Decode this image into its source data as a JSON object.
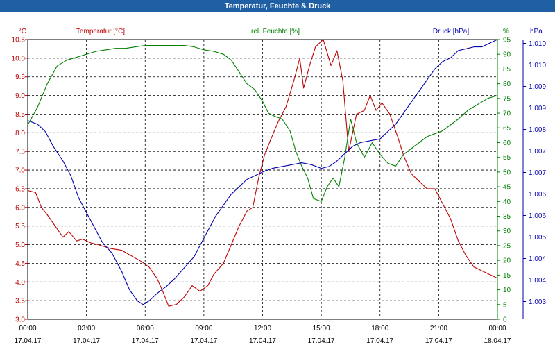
{
  "title": "Temperatur, Feuchte & Druck",
  "chart_data": {
    "type": "line",
    "title": "Temperatur, Feuchte & Druck",
    "x": {
      "labels": [
        [
          "00:00",
          "17.04.17"
        ],
        [
          "03:00",
          "17.04.17"
        ],
        [
          "06:00",
          "17.04.17"
        ],
        [
          "09:00",
          "17.04.17"
        ],
        [
          "12:00",
          "17.04.17"
        ],
        [
          "15:00",
          "17.04.17"
        ],
        [
          "18:00",
          "17.04.17"
        ],
        [
          "21:00",
          "17.04.17"
        ],
        [
          "00:00",
          "18.04.17"
        ]
      ],
      "ticks_hours": [
        0,
        3,
        6,
        9,
        12,
        15,
        18,
        21,
        24
      ],
      "range_hours": [
        0,
        24
      ]
    },
    "axes": {
      "temperature": {
        "label": "Temperatur [°C]",
        "unit": "°C",
        "min": 3.0,
        "max": 10.5,
        "ticks": [
          "3.0",
          "3.5",
          "4.0",
          "4.5",
          "5.0",
          "5.5",
          "6.0",
          "6.5",
          "7.0",
          "7.5",
          "8.0",
          "8.5",
          "9.0",
          "9.5",
          "10.0",
          "10.5"
        ],
        "color": "#c00000"
      },
      "humidity": {
        "label": "rel. Feuchte [%]",
        "unit": "%",
        "min": 0,
        "max": 95,
        "ticks": [
          "0",
          "5",
          "10",
          "15",
          "20",
          "25",
          "30",
          "35",
          "40",
          "45",
          "50",
          "55",
          "60",
          "65",
          "70",
          "75",
          "80",
          "85",
          "90",
          "95"
        ],
        "color": "#008000"
      },
      "pressure": {
        "label": "Druck [hPa]",
        "unit": "hPa",
        "min": 1002.7,
        "max": 1010.3,
        "ticks": [
          "1.003",
          "1.004",
          "1.004",
          "1.005",
          "1.006",
          "1.006",
          "1.007",
          "1.007",
          "1.008",
          "1.009",
          "1.009",
          "1.010",
          "1.010"
        ],
        "color": "#0000b0"
      }
    },
    "grid": true,
    "series": [
      {
        "name": "Temperatur [°C]",
        "color": "#c00000",
        "axis": "temperature",
        "points": [
          [
            0,
            6.45
          ],
          [
            0.4,
            6.4
          ],
          [
            0.7,
            6.0
          ],
          [
            1.0,
            5.8
          ],
          [
            1.4,
            5.5
          ],
          [
            1.8,
            5.2
          ],
          [
            2.1,
            5.35
          ],
          [
            2.5,
            5.1
          ],
          [
            2.8,
            5.15
          ],
          [
            3.2,
            5.05
          ],
          [
            3.6,
            5.0
          ],
          [
            4.2,
            4.9
          ],
          [
            4.8,
            4.85
          ],
          [
            5.3,
            4.7
          ],
          [
            5.8,
            4.55
          ],
          [
            6.2,
            4.4
          ],
          [
            6.6,
            4.1
          ],
          [
            6.9,
            3.75
          ],
          [
            7.2,
            3.35
          ],
          [
            7.6,
            3.4
          ],
          [
            8.0,
            3.6
          ],
          [
            8.4,
            3.9
          ],
          [
            8.8,
            3.75
          ],
          [
            9.2,
            3.9
          ],
          [
            9.5,
            4.2
          ],
          [
            10.0,
            4.5
          ],
          [
            10.4,
            5.0
          ],
          [
            10.8,
            5.5
          ],
          [
            11.2,
            5.9
          ],
          [
            11.5,
            6.0
          ],
          [
            11.8,
            6.8
          ],
          [
            12.1,
            7.4
          ],
          [
            12.4,
            7.8
          ],
          [
            12.8,
            8.3
          ],
          [
            13.2,
            8.7
          ],
          [
            13.6,
            9.4
          ],
          [
            13.9,
            10.0
          ],
          [
            14.1,
            9.2
          ],
          [
            14.4,
            9.8
          ],
          [
            14.7,
            10.3
          ],
          [
            15.1,
            10.5
          ],
          [
            15.5,
            9.8
          ],
          [
            15.8,
            10.2
          ],
          [
            16.1,
            9.4
          ],
          [
            16.4,
            7.5
          ],
          [
            16.8,
            8.5
          ],
          [
            17.2,
            8.6
          ],
          [
            17.5,
            9.0
          ],
          [
            17.8,
            8.6
          ],
          [
            18.1,
            8.8
          ],
          [
            18.5,
            8.5
          ],
          [
            18.9,
            7.9
          ],
          [
            19.2,
            7.4
          ],
          [
            19.6,
            6.9
          ],
          [
            20.0,
            6.7
          ],
          [
            20.4,
            6.5
          ],
          [
            20.8,
            6.5
          ],
          [
            21.2,
            6.1
          ],
          [
            21.6,
            5.7
          ],
          [
            22.0,
            5.1
          ],
          [
            22.4,
            4.7
          ],
          [
            22.8,
            4.4
          ],
          [
            23.2,
            4.3
          ],
          [
            23.6,
            4.2
          ],
          [
            24.0,
            4.1
          ]
        ]
      },
      {
        "name": "rel. Feuchte [%]",
        "color": "#008000",
        "axis": "humidity",
        "points": [
          [
            0,
            66
          ],
          [
            0.5,
            72
          ],
          [
            1.0,
            80
          ],
          [
            1.5,
            86
          ],
          [
            2.0,
            88
          ],
          [
            2.5,
            89
          ],
          [
            3.0,
            90
          ],
          [
            3.5,
            91
          ],
          [
            4.0,
            91.5
          ],
          [
            4.5,
            92
          ],
          [
            5.0,
            92
          ],
          [
            5.5,
            92.5
          ],
          [
            6.0,
            93
          ],
          [
            6.5,
            93
          ],
          [
            7.0,
            93
          ],
          [
            7.5,
            93
          ],
          [
            8.0,
            93
          ],
          [
            8.5,
            92.5
          ],
          [
            9.0,
            91.5
          ],
          [
            9.5,
            91
          ],
          [
            10.0,
            90
          ],
          [
            10.4,
            88
          ],
          [
            10.8,
            84
          ],
          [
            11.2,
            80
          ],
          [
            11.6,
            78
          ],
          [
            12.0,
            74
          ],
          [
            12.3,
            70
          ],
          [
            12.6,
            69
          ],
          [
            13.0,
            68
          ],
          [
            13.4,
            64
          ],
          [
            13.7,
            57
          ],
          [
            14.0,
            52
          ],
          [
            14.3,
            48
          ],
          [
            14.6,
            41
          ],
          [
            15.0,
            40
          ],
          [
            15.3,
            45
          ],
          [
            15.6,
            48
          ],
          [
            15.9,
            45
          ],
          [
            16.2,
            55
          ],
          [
            16.5,
            68
          ],
          [
            16.8,
            60
          ],
          [
            17.2,
            55
          ],
          [
            17.6,
            60
          ],
          [
            18.0,
            56
          ],
          [
            18.4,
            53
          ],
          [
            18.8,
            52
          ],
          [
            19.2,
            56
          ],
          [
            19.6,
            58
          ],
          [
            20.0,
            60
          ],
          [
            20.4,
            62
          ],
          [
            20.8,
            63
          ],
          [
            21.2,
            64
          ],
          [
            21.6,
            66
          ],
          [
            22.0,
            68
          ],
          [
            22.5,
            71
          ],
          [
            23.0,
            73
          ],
          [
            23.5,
            75
          ],
          [
            24.0,
            76
          ]
        ]
      },
      {
        "name": "Druck [hPa]",
        "color": "#0000b0",
        "axis": "pressure",
        "points": [
          [
            0,
            1008.1
          ],
          [
            0.5,
            1008.0
          ],
          [
            0.9,
            1007.8
          ],
          [
            1.3,
            1007.4
          ],
          [
            1.8,
            1007.0
          ],
          [
            2.2,
            1006.6
          ],
          [
            2.6,
            1006.0
          ],
          [
            3.0,
            1005.6
          ],
          [
            3.4,
            1005.2
          ],
          [
            3.8,
            1004.8
          ],
          [
            4.3,
            1004.5
          ],
          [
            4.8,
            1004.0
          ],
          [
            5.2,
            1003.5
          ],
          [
            5.6,
            1003.2
          ],
          [
            5.9,
            1003.1
          ],
          [
            6.2,
            1003.2
          ],
          [
            6.6,
            1003.4
          ],
          [
            7.1,
            1003.6
          ],
          [
            7.5,
            1003.8
          ],
          [
            8.0,
            1004.1
          ],
          [
            8.5,
            1004.4
          ],
          [
            8.8,
            1004.7
          ],
          [
            9.2,
            1005.1
          ],
          [
            9.6,
            1005.5
          ],
          [
            10.0,
            1005.8
          ],
          [
            10.4,
            1006.1
          ],
          [
            10.8,
            1006.3
          ],
          [
            11.2,
            1006.5
          ],
          [
            11.6,
            1006.6
          ],
          [
            12.0,
            1006.7
          ],
          [
            12.5,
            1006.8
          ],
          [
            13.0,
            1006.85
          ],
          [
            13.5,
            1006.9
          ],
          [
            14.0,
            1006.95
          ],
          [
            14.5,
            1006.9
          ],
          [
            15.0,
            1006.8
          ],
          [
            15.4,
            1006.85
          ],
          [
            15.8,
            1007.0
          ],
          [
            16.2,
            1007.2
          ],
          [
            16.6,
            1007.4
          ],
          [
            17.0,
            1007.5
          ],
          [
            17.5,
            1007.55
          ],
          [
            18.0,
            1007.6
          ],
          [
            18.4,
            1007.8
          ],
          [
            18.8,
            1008.0
          ],
          [
            19.2,
            1008.3
          ],
          [
            19.6,
            1008.6
          ],
          [
            20.0,
            1008.9
          ],
          [
            20.4,
            1009.2
          ],
          [
            20.8,
            1009.5
          ],
          [
            21.2,
            1009.7
          ],
          [
            21.6,
            1009.8
          ],
          [
            22.0,
            1010.0
          ],
          [
            22.4,
            1010.05
          ],
          [
            22.8,
            1010.1
          ],
          [
            23.2,
            1010.1
          ],
          [
            23.6,
            1010.2
          ],
          [
            24.0,
            1010.3
          ]
        ]
      }
    ]
  }
}
